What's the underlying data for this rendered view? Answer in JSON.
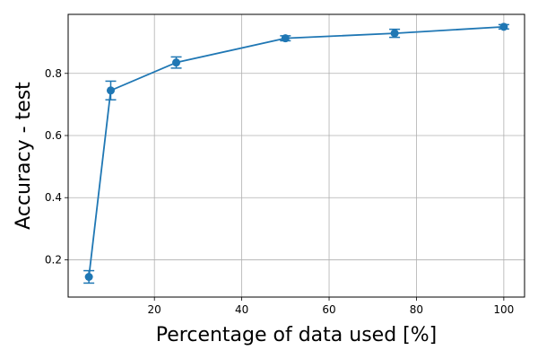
{
  "chart_data": {
    "type": "line",
    "title": "",
    "xlabel": "Percentage of data used [%]",
    "ylabel": "Accuracy - test",
    "x": [
      5,
      10,
      25,
      50,
      75,
      100
    ],
    "series": [
      {
        "values": [
          0.145,
          0.745,
          0.835,
          0.913,
          0.929,
          0.95
        ],
        "error": [
          0.02,
          0.03,
          0.018,
          0.008,
          0.013,
          0.007
        ],
        "color": "#1f77b4"
      }
    ],
    "xlim": [
      0.25,
      104.75
    ],
    "ylim": [
      0.08,
      0.99
    ],
    "xticks": [
      20,
      40,
      60,
      80,
      100
    ],
    "yticks": [
      0.2,
      0.4,
      0.6,
      0.8
    ],
    "xtick_labels": [
      "20",
      "40",
      "60",
      "80",
      "100"
    ],
    "ytick_labels": [
      "0.2",
      "0.4",
      "0.6",
      "0.8"
    ],
    "grid": true,
    "marker": "circle",
    "error_bars": true
  }
}
